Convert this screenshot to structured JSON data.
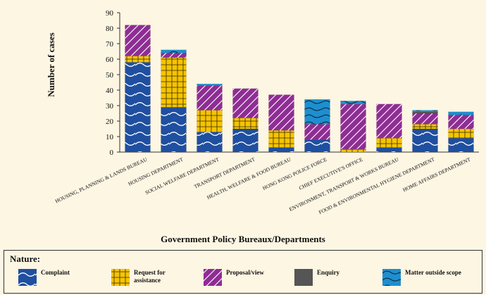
{
  "colors": {
    "background": "#fdf6e3",
    "Complaint": "#1f4fa0",
    "Request for assistance": "#f5c400",
    "Proposal/view": "#8e2d94",
    "Enquiry": "#555555",
    "Matter outside scope": "#1d8fcf"
  },
  "chart_data": {
    "type": "bar",
    "stacked": true,
    "ylabel": "Number of cases",
    "xlabel": "Government Policy Bureaux/Departments",
    "ylim": [
      0,
      90
    ],
    "yticks": [
      0,
      10,
      20,
      30,
      40,
      50,
      60,
      70,
      80,
      90
    ],
    "grid": false,
    "categories": [
      "HOUSING, PLANNING & LANDS BUREAU",
      "HOUSING DEPARTMENT",
      "SOCIAL WELFARE DEPARTMENT",
      "TRANSPORT DEPARTMENT",
      "HEALTH, WELFARE & FOOD BUREAU",
      "HONG KONG POLICE FORCE",
      "CHIEF EXECUTIVE'S OFFICE",
      "ENVIRONMENT, TRANSPORT & WORKS BUREAU",
      "FOOD & ENVIRONMENTAL HYGIENE DEPARTMENT",
      "HOME AFFAIRS DEPARTMENT"
    ],
    "series": [
      {
        "name": "Complaint",
        "values": [
          58,
          29,
          13,
          15,
          3,
          8,
          0,
          3,
          15,
          9
        ]
      },
      {
        "name": "Request for assistance",
        "values": [
          4,
          32,
          14,
          7,
          11,
          0,
          2,
          6,
          3,
          6
        ]
      },
      {
        "name": "Proposal/view",
        "values": [
          20,
          3,
          16,
          19,
          23,
          10,
          29,
          22,
          7,
          9
        ]
      },
      {
        "name": "Enquiry",
        "values": [
          0,
          0,
          0,
          0,
          0,
          0,
          0,
          0,
          1,
          0
        ]
      },
      {
        "name": "Matter outside scope",
        "values": [
          0,
          2,
          1,
          0,
          0,
          16,
          2,
          0,
          1,
          2
        ]
      }
    ]
  },
  "legend": {
    "title": "Nature:",
    "items": [
      {
        "label": "Complaint",
        "pattern": "complaint"
      },
      {
        "label": "Request for assistance",
        "pattern": "request"
      },
      {
        "label": "Proposal/view",
        "pattern": "proposal"
      },
      {
        "label": "Enquiry",
        "pattern": "enquiry"
      },
      {
        "label": "Matter outside scope",
        "pattern": "outside"
      }
    ]
  }
}
